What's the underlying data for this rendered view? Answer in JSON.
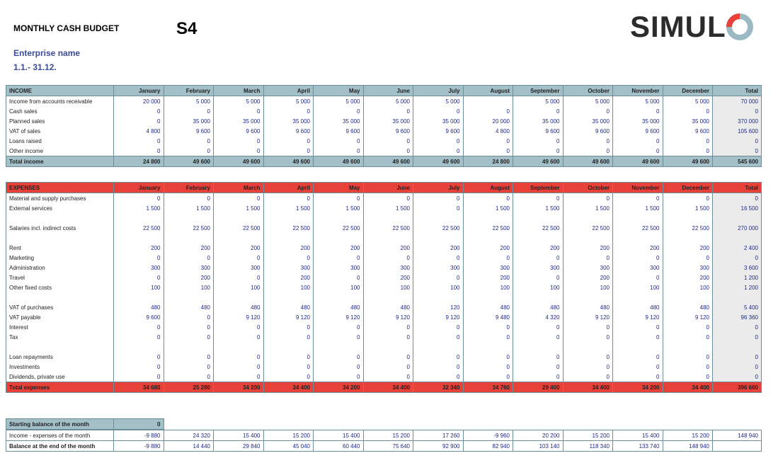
{
  "header": {
    "title": "MONTHLY CASH BUDGET",
    "code": "S4",
    "logo": "SIMUL",
    "enterprise": "Enterprise name",
    "period": "1.1.- 31.12."
  },
  "income": {
    "header": [
      "INCOME",
      "January",
      "February",
      "March",
      "April",
      "May",
      "June",
      "July",
      "August",
      "September",
      "October",
      "November",
      "December",
      "Total"
    ],
    "rows": [
      {
        "label": "Income from accounts receivable",
        "values": [
          "20 000",
          "5 000",
          "5 000",
          "5 000",
          "5 000",
          "5 000",
          "5 000",
          null,
          "5 000",
          "5 000",
          "5 000",
          "5 000",
          "70 000"
        ]
      },
      {
        "label": "Cash sales",
        "values": [
          "0",
          "0",
          "0",
          "0",
          "0",
          "0",
          "0",
          "0",
          "0",
          "0",
          "0",
          "0",
          "0"
        ]
      },
      {
        "label": "Planned sales",
        "values": [
          "0",
          "35 000",
          "35 000",
          "35 000",
          "35 000",
          "35 000",
          "35 000",
          "20 000",
          "35 000",
          "35 000",
          "35 000",
          "35 000",
          "370 000"
        ]
      },
      {
        "label": "VAT of sales",
        "values": [
          "4 800",
          "9 600",
          "9 600",
          "9 600",
          "9 600",
          "9 600",
          "9 600",
          "4 800",
          "9 600",
          "9 600",
          "9 600",
          "9 600",
          "105 600"
        ]
      },
      {
        "label": "Loans raised",
        "values": [
          "0",
          "0",
          "0",
          "0",
          "0",
          "0",
          "0",
          "0",
          "0",
          "0",
          "0",
          "0",
          "0"
        ]
      },
      {
        "label": "Other income",
        "values": [
          "0",
          "0",
          "0",
          "0",
          "0",
          "0",
          "0",
          "0",
          "0",
          "0",
          "0",
          "0",
          "0"
        ]
      }
    ],
    "total": {
      "label": "Total income",
      "values": [
        "24 800",
        "49 600",
        "49 600",
        "49 600",
        "49 600",
        "49 600",
        "49 600",
        "24 800",
        "49 600",
        "49 600",
        "49 600",
        "49 600",
        "545 600"
      ]
    }
  },
  "expenses": {
    "header": [
      "EXPENSES",
      "January",
      "February",
      "March",
      "April",
      "May",
      "June",
      "July",
      "August",
      "September",
      "October",
      "November",
      "December",
      "Total"
    ],
    "rows": [
      {
        "label": "Material and supply purchases",
        "values": [
          "0",
          "0",
          "0",
          "0",
          "0",
          "0",
          "0",
          "0",
          "0",
          "0",
          "0",
          "0",
          "0"
        ]
      },
      {
        "label": "External services",
        "values": [
          "1 500",
          "1 500",
          "1 500",
          "1 500",
          "1 500",
          "1 500",
          "0",
          "1 500",
          "1 500",
          "1 500",
          "1 500",
          "1 500",
          "16 500"
        ]
      },
      null,
      {
        "label": "Salaries incl. indirect costs",
        "values": [
          "22 500",
          "22 500",
          "22 500",
          "22 500",
          "22 500",
          "22 500",
          "22 500",
          "22 500",
          "22 500",
          "22 500",
          "22 500",
          "22 500",
          "270 000"
        ]
      },
      null,
      {
        "label": "Rent",
        "values": [
          "200",
          "200",
          "200",
          "200",
          "200",
          "200",
          "200",
          "200",
          "200",
          "200",
          "200",
          "200",
          "2 400"
        ]
      },
      {
        "label": "Marketing",
        "values": [
          "0",
          "0",
          "0",
          "0",
          "0",
          "0",
          "0",
          "0",
          "0",
          "0",
          "0",
          "0",
          "0"
        ]
      },
      {
        "label": "Administration",
        "values": [
          "300",
          "300",
          "300",
          "300",
          "300",
          "300",
          "300",
          "300",
          "300",
          "300",
          "300",
          "300",
          "3 600"
        ]
      },
      {
        "label": "Travel",
        "values": [
          "0",
          "200",
          "0",
          "200",
          "0",
          "200",
          "0",
          "200",
          "0",
          "200",
          "0",
          "200",
          "1 200"
        ]
      },
      {
        "label": "Other fixed costs",
        "values": [
          "100",
          "100",
          "100",
          "100",
          "100",
          "100",
          "100",
          "100",
          "100",
          "100",
          "100",
          "100",
          "1 200"
        ]
      },
      null,
      {
        "label": "VAT of purchases",
        "values": [
          "480",
          "480",
          "480",
          "480",
          "480",
          "480",
          "120",
          "480",
          "480",
          "480",
          "480",
          "480",
          "5 400"
        ]
      },
      {
        "label": "VAT payable",
        "values": [
          "9 600",
          "0",
          "9 120",
          "9 120",
          "9 120",
          "9 120",
          "9 120",
          "9 480",
          "4 320",
          "9 120",
          "9 120",
          "9 120",
          "96 360"
        ]
      },
      {
        "label": "Interest",
        "values": [
          "0",
          "0",
          "0",
          "0",
          "0",
          "0",
          "0",
          "0",
          "0",
          "0",
          "0",
          "0",
          "0"
        ]
      },
      {
        "label": "Tax",
        "values": [
          "0",
          "0",
          "0",
          "0",
          "0",
          "0",
          "0",
          "0",
          "0",
          "0",
          "0",
          "0",
          "0"
        ]
      },
      null,
      {
        "label": "Loan repayments",
        "values": [
          "0",
          "0",
          "0",
          "0",
          "0",
          "0",
          "0",
          "0",
          "0",
          "0",
          "0",
          "0",
          "0"
        ]
      },
      {
        "label": "Investments",
        "values": [
          "0",
          "0",
          "0",
          "0",
          "0",
          "0",
          "0",
          "0",
          "0",
          "0",
          "0",
          "0",
          "0"
        ]
      },
      {
        "label": "Dividends, private use",
        "values": [
          "0",
          "0",
          "0",
          "0",
          "0",
          "0",
          "0",
          "0",
          "0",
          "0",
          "0",
          "0",
          "0"
        ]
      }
    ],
    "total": {
      "label": "Total expenses",
      "values": [
        "34 680",
        "25 280",
        "34 200",
        "34 400",
        "34 200",
        "34 400",
        "32 340",
        "34 760",
        "29 400",
        "34 400",
        "34 200",
        "34 400",
        "396 660"
      ]
    }
  },
  "balance": {
    "starting": {
      "label": "Starting balance of the month",
      "value": "0"
    },
    "rows": [
      {
        "label": "Income - expenses of the month",
        "values": [
          "-9 880",
          "24 320",
          "15 400",
          "15 200",
          "15 400",
          "15 200",
          "17 260",
          "-9 960",
          "20 200",
          "15 200",
          "15 400",
          "15 200",
          "148 940"
        ]
      },
      {
        "label": "Balance at the end of the month",
        "values": [
          "-9 880",
          "14 440",
          "29 840",
          "45 040",
          "60 440",
          "75 640",
          "92 900",
          "82 940",
          "103 140",
          "118 340",
          "133 740",
          "148 940",
          null
        ]
      }
    ]
  }
}
